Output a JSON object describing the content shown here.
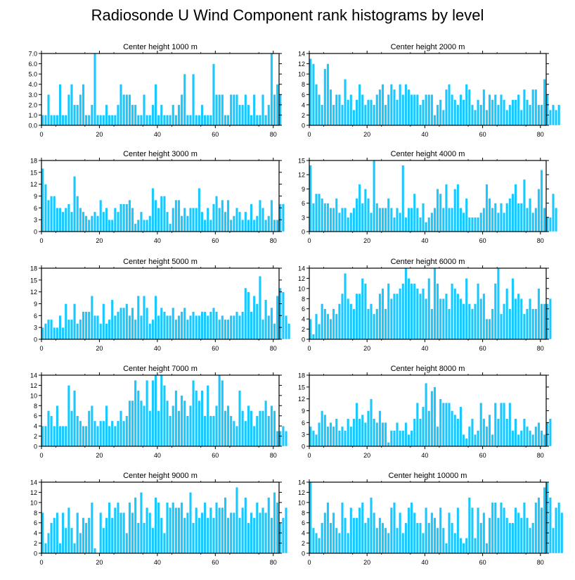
{
  "title": "Radiosonde U Wind Component rank histograms by level",
  "colors": {
    "bar": "#19c8ff",
    "bar_edge": "#ffffff",
    "axis": "#000000"
  },
  "chart_data": [
    {
      "type": "bar",
      "title": "Center height 1000 m",
      "xlim": [
        0,
        82
      ],
      "ylim": [
        0,
        7
      ],
      "xticks": [
        "0",
        "20",
        "40",
        "60",
        "80"
      ],
      "yticks": [
        "0.0",
        "1.0",
        "2.0",
        "3.0",
        "4.0",
        "5.0",
        "6.0",
        "7.0"
      ],
      "values": [
        1,
        1,
        3,
        1,
        1,
        1,
        4,
        1,
        1,
        3,
        4,
        2,
        2,
        3,
        4,
        1,
        1,
        2,
        7,
        1,
        1,
        1,
        2,
        1,
        1,
        1,
        2,
        4,
        3,
        3,
        3,
        2,
        2,
        1,
        1,
        3,
        1,
        1,
        2,
        4,
        1,
        2,
        1,
        1,
        1,
        2,
        1,
        2,
        3,
        5,
        1,
        1,
        5,
        1,
        1,
        2,
        1,
        1,
        1,
        6,
        3,
        3,
        3,
        1,
        1,
        3,
        3,
        3,
        2,
        2,
        3,
        2,
        1,
        3,
        1,
        1,
        3,
        1,
        2,
        7,
        3,
        4,
        3
      ]
    },
    {
      "type": "bar",
      "title": "Center height 2000 m",
      "xlim": [
        0,
        82
      ],
      "ylim": [
        0,
        14
      ],
      "xticks": [
        "0",
        "20",
        "40",
        "60",
        "80"
      ],
      "yticks": [
        "0",
        "2",
        "4",
        "6",
        "8",
        "10",
        "12",
        "14"
      ],
      "values": [
        13,
        12,
        8,
        6,
        4,
        11,
        12,
        7,
        4,
        6,
        6,
        4,
        9,
        5,
        6,
        3,
        5,
        8,
        6,
        4,
        5,
        5,
        4,
        6,
        7,
        8,
        4,
        6,
        8,
        7,
        5,
        8,
        6,
        8,
        7,
        6,
        6,
        6,
        4,
        5,
        6,
        6,
        6,
        2,
        4,
        5,
        3,
        7,
        8,
        6,
        5,
        4,
        6,
        5,
        8,
        7,
        4,
        3,
        5,
        4,
        7,
        3,
        6,
        5,
        6,
        4,
        6,
        5,
        3,
        4,
        5,
        5,
        6,
        3,
        7,
        5,
        4,
        7,
        7,
        4,
        4,
        9,
        6,
        3,
        4,
        3,
        4
      ]
    },
    {
      "type": "bar",
      "title": "Center height 3000 m",
      "xlim": [
        0,
        82
      ],
      "ylim": [
        0,
        18
      ],
      "xticks": [
        "0",
        "20",
        "40",
        "60",
        "80"
      ],
      "yticks": [
        "0",
        "3",
        "6",
        "9",
        "12",
        "15",
        "18"
      ],
      "values": [
        16,
        12,
        8,
        9,
        9,
        6,
        6,
        5,
        6,
        7,
        5,
        14,
        9,
        6,
        5,
        4,
        3,
        4,
        5,
        4,
        8,
        5,
        6,
        3,
        3,
        6,
        5,
        7,
        7,
        7,
        8,
        6,
        2,
        3,
        5,
        3,
        3,
        4,
        11,
        8,
        6,
        9,
        9,
        5,
        2,
        6,
        8,
        8,
        4,
        6,
        4,
        6,
        6,
        6,
        11,
        5,
        3,
        6,
        3,
        7,
        9,
        6,
        8,
        5,
        8,
        3,
        4,
        6,
        5,
        3,
        5,
        3,
        7,
        3,
        4,
        8,
        6,
        3,
        4,
        8,
        3,
        3,
        7,
        7
      ]
    },
    {
      "type": "bar",
      "title": "Center height 4000 m",
      "xlim": [
        0,
        82
      ],
      "ylim": [
        0,
        15
      ],
      "xticks": [
        "0",
        "20",
        "40",
        "60",
        "80"
      ],
      "yticks": [
        "0",
        "3",
        "6",
        "9",
        "12",
        "15"
      ],
      "values": [
        14,
        6,
        8,
        8,
        7,
        6,
        6,
        5,
        5,
        7,
        4,
        5,
        5,
        3,
        4,
        5,
        7,
        10,
        6,
        9,
        7,
        4,
        15,
        6,
        5,
        5,
        5,
        7,
        5,
        3,
        5,
        4,
        14,
        3,
        5,
        5,
        8,
        5,
        3,
        6,
        2,
        3,
        4,
        5,
        9,
        8,
        5,
        10,
        5,
        5,
        9,
        10,
        5,
        4,
        7,
        3,
        3,
        3,
        3,
        4,
        5,
        10,
        7,
        5,
        6,
        4,
        6,
        4,
        6,
        7,
        8,
        10,
        6,
        6,
        11,
        5,
        7,
        4,
        5,
        9,
        13,
        5,
        3,
        3,
        8,
        5
      ]
    },
    {
      "type": "bar",
      "title": "Center height 5000 m",
      "xlim": [
        0,
        82
      ],
      "ylim": [
        0,
        18
      ],
      "xticks": [
        "0",
        "20",
        "40",
        "60",
        "80"
      ],
      "yticks": [
        "0",
        "3",
        "6",
        "9",
        "12",
        "15",
        "18"
      ],
      "values": [
        3,
        4,
        5,
        5,
        3,
        3,
        6,
        3,
        9,
        5,
        5,
        9,
        4,
        5,
        7,
        7,
        7,
        11,
        6,
        6,
        4,
        9,
        4,
        5,
        10,
        6,
        7,
        8,
        8,
        9,
        6,
        8,
        5,
        11,
        6,
        11,
        8,
        4,
        5,
        11,
        6,
        8,
        7,
        6,
        6,
        8,
        5,
        6,
        7,
        8,
        5,
        6,
        7,
        6,
        6,
        7,
        7,
        6,
        7,
        8,
        7,
        5,
        6,
        5,
        5,
        6,
        6,
        7,
        6,
        7,
        13,
        12,
        7,
        11,
        9,
        16,
        5,
        10,
        6,
        8,
        4,
        11,
        13,
        12,
        6,
        4
      ]
    },
    {
      "type": "bar",
      "title": "Center height 6000 m",
      "xlim": [
        0,
        82
      ],
      "ylim": [
        0,
        14
      ],
      "xticks": [
        "0",
        "20",
        "40",
        "60",
        "80"
      ],
      "yticks": [
        "0",
        "2",
        "4",
        "6",
        "8",
        "10",
        "12",
        "14"
      ],
      "values": [
        4,
        1,
        5,
        3,
        7,
        6,
        5,
        4,
        6,
        5,
        7,
        9,
        13,
        8,
        7,
        6,
        9,
        9,
        12,
        11,
        6,
        7,
        5,
        6,
        9,
        10,
        6,
        11,
        8,
        9,
        9,
        10,
        11,
        14,
        12,
        11,
        11,
        10,
        9,
        10,
        8,
        12,
        6,
        14,
        11,
        8,
        8,
        9,
        6,
        11,
        10,
        9,
        8,
        7,
        12,
        7,
        6,
        7,
        11,
        8,
        9,
        4,
        4,
        6,
        11,
        14,
        5,
        7,
        10,
        6,
        12,
        8,
        9,
        8,
        5,
        6,
        8,
        6,
        6,
        10,
        7,
        7,
        7,
        8
      ]
    },
    {
      "type": "bar",
      "title": "Center height 7000 m",
      "xlim": [
        0,
        82
      ],
      "ylim": [
        0,
        14
      ],
      "xticks": [
        "0",
        "20",
        "40",
        "60",
        "80"
      ],
      "yticks": [
        "0",
        "2",
        "4",
        "6",
        "8",
        "10",
        "12",
        "14"
      ],
      "values": [
        4,
        4,
        7,
        6,
        4,
        8,
        4,
        4,
        4,
        12,
        7,
        11,
        6,
        5,
        4,
        4,
        7,
        8,
        5,
        4,
        5,
        5,
        8,
        4,
        5,
        4,
        5,
        7,
        5,
        6,
        9,
        9,
        13,
        11,
        9,
        8,
        13,
        7,
        13,
        14,
        7,
        14,
        12,
        9,
        6,
        8,
        11,
        7,
        10,
        9,
        6,
        8,
        13,
        11,
        9,
        11,
        6,
        12,
        6,
        6,
        8,
        14,
        13,
        7,
        8,
        6,
        5,
        4,
        11,
        7,
        5,
        8,
        7,
        4,
        6,
        7,
        7,
        9,
        6,
        8,
        7,
        3,
        3,
        4,
        3
      ]
    },
    {
      "type": "bar",
      "title": "Center height 8000 m",
      "xlim": [
        0,
        82
      ],
      "ylim": [
        0,
        18
      ],
      "xticks": [
        "0",
        "20",
        "40",
        "60",
        "80"
      ],
      "yticks": [
        "0",
        "3",
        "6",
        "9",
        "12",
        "15",
        "18"
      ],
      "values": [
        5,
        4,
        3,
        6,
        9,
        8,
        5,
        6,
        5,
        7,
        4,
        5,
        4,
        7,
        5,
        7,
        11,
        7,
        8,
        6,
        9,
        12,
        7,
        6,
        9,
        6,
        6,
        1,
        4,
        4,
        6,
        4,
        4,
        6,
        3,
        4,
        7,
        11,
        7,
        10,
        16,
        9,
        14,
        15,
        5,
        12,
        11,
        11,
        11,
        9,
        8,
        7,
        10,
        3,
        2,
        5,
        7,
        3,
        4,
        11,
        7,
        5,
        8,
        3,
        11,
        7,
        11,
        11,
        7,
        11,
        4,
        7,
        3,
        4,
        7,
        5,
        4,
        3,
        5,
        6,
        4,
        3,
        6,
        7
      ]
    },
    {
      "type": "bar",
      "title": "Center height 9000 m",
      "xlim": [
        0,
        82
      ],
      "ylim": [
        0,
        14
      ],
      "xticks": [
        "0",
        "20",
        "40",
        "60",
        "80"
      ],
      "yticks": [
        "0",
        "2",
        "4",
        "6",
        "8",
        "10",
        "12",
        "14"
      ],
      "values": [
        8,
        2,
        4,
        6,
        7,
        8,
        2,
        8,
        5,
        9,
        5,
        2,
        8,
        4,
        7,
        6,
        7,
        10,
        1,
        0,
        8,
        5,
        7,
        10,
        7,
        9,
        10,
        8,
        8,
        4,
        10,
        8,
        11,
        6,
        12,
        6,
        9,
        8,
        5,
        11,
        10,
        7,
        4,
        10,
        9,
        10,
        9,
        9,
        10,
        7,
        8,
        12,
        6,
        9,
        7,
        8,
        10,
        7,
        9,
        7,
        10,
        9,
        9,
        11,
        7,
        8,
        8,
        13,
        7,
        9,
        11,
        6,
        8,
        7,
        10,
        8,
        9,
        8,
        11,
        7,
        12,
        10,
        6,
        7,
        9
      ]
    },
    {
      "type": "bar",
      "title": "Center height 10000 m",
      "xlim": [
        0,
        82
      ],
      "ylim": [
        0,
        14
      ],
      "xticks": [
        "0",
        "20",
        "40",
        "60",
        "80"
      ],
      "yticks": [
        "0",
        "2",
        "4",
        "6",
        "8",
        "10",
        "12",
        "14"
      ],
      "values": [
        14,
        5,
        4,
        3,
        6,
        8,
        10,
        6,
        8,
        5,
        4,
        10,
        7,
        4,
        9,
        7,
        7,
        9,
        10,
        6,
        7,
        11,
        8,
        5,
        7,
        6,
        5,
        4,
        9,
        10,
        5,
        8,
        4,
        6,
        9,
        10,
        8,
        6,
        6,
        4,
        9,
        6,
        8,
        7,
        5,
        9,
        5,
        2,
        8,
        6,
        4,
        9,
        3,
        2,
        3,
        11,
        9,
        3,
        9,
        6,
        8,
        2,
        7,
        10,
        10,
        7,
        10,
        9,
        7,
        6,
        6,
        9,
        8,
        7,
        10,
        7,
        5,
        6,
        10,
        11,
        9,
        13,
        14,
        11,
        5,
        9,
        10,
        8
      ]
    }
  ]
}
